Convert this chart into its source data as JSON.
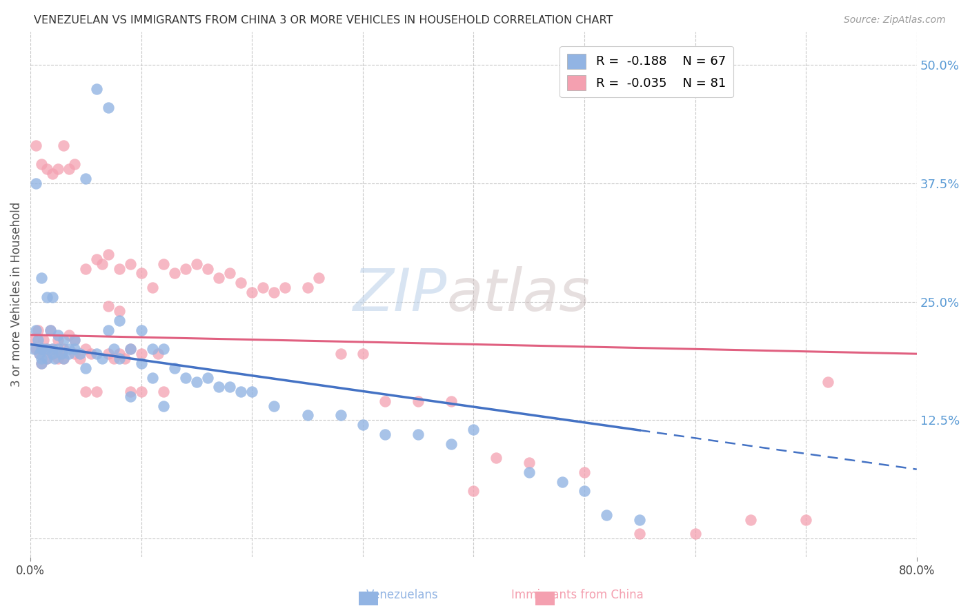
{
  "title": "VENEZUELAN VS IMMIGRANTS FROM CHINA 3 OR MORE VEHICLES IN HOUSEHOLD CORRELATION CHART",
  "source": "Source: ZipAtlas.com",
  "ylabel": "3 or more Vehicles in Household",
  "xlim": [
    0.0,
    0.8
  ],
  "ylim": [
    -0.02,
    0.535
  ],
  "yticks_right": [
    0.0,
    0.125,
    0.25,
    0.375,
    0.5
  ],
  "ytick_right_labels": [
    "",
    "12.5%",
    "25.0%",
    "37.5%",
    "50.0%"
  ],
  "legend_r1": "R =  -0.188",
  "legend_n1": "N = 67",
  "legend_r2": "R =  -0.035",
  "legend_n2": "N = 81",
  "blue_color": "#92B4E3",
  "pink_color": "#F4A0B0",
  "blue_line_color": "#4472C4",
  "pink_line_color": "#E06080",
  "watermark_zip": "ZIP",
  "watermark_atlas": "atlas",
  "background_color": "#ffffff",
  "grid_color": "#c8c8c8",
  "right_axis_color": "#5B9BD5",
  "blue_line_intercept": 0.205,
  "blue_line_slope": -0.165,
  "pink_line_intercept": 0.215,
  "pink_line_slope": -0.025,
  "venezuelans_x": [
    0.003,
    0.005,
    0.007,
    0.008,
    0.01,
    0.01,
    0.01,
    0.012,
    0.015,
    0.015,
    0.018,
    0.02,
    0.02,
    0.022,
    0.025,
    0.025,
    0.028,
    0.03,
    0.03,
    0.035,
    0.035,
    0.04,
    0.04,
    0.045,
    0.05,
    0.05,
    0.06,
    0.06,
    0.065,
    0.07,
    0.07,
    0.075,
    0.08,
    0.08,
    0.09,
    0.09,
    0.1,
    0.1,
    0.11,
    0.11,
    0.12,
    0.12,
    0.13,
    0.14,
    0.15,
    0.16,
    0.17,
    0.18,
    0.19,
    0.2,
    0.22,
    0.25,
    0.28,
    0.3,
    0.32,
    0.35,
    0.38,
    0.4,
    0.45,
    0.48,
    0.5,
    0.52,
    0.55,
    0.005,
    0.01,
    0.015,
    0.02
  ],
  "venezuelans_y": [
    0.2,
    0.22,
    0.21,
    0.195,
    0.2,
    0.185,
    0.19,
    0.2,
    0.2,
    0.19,
    0.22,
    0.2,
    0.195,
    0.19,
    0.2,
    0.215,
    0.195,
    0.21,
    0.19,
    0.2,
    0.195,
    0.21,
    0.2,
    0.195,
    0.38,
    0.18,
    0.475,
    0.195,
    0.19,
    0.455,
    0.22,
    0.2,
    0.23,
    0.19,
    0.2,
    0.15,
    0.22,
    0.185,
    0.2,
    0.17,
    0.2,
    0.14,
    0.18,
    0.17,
    0.165,
    0.17,
    0.16,
    0.16,
    0.155,
    0.155,
    0.14,
    0.13,
    0.13,
    0.12,
    0.11,
    0.11,
    0.1,
    0.115,
    0.07,
    0.06,
    0.05,
    0.025,
    0.02,
    0.375,
    0.275,
    0.255,
    0.255
  ],
  "china_x": [
    0.003,
    0.005,
    0.007,
    0.008,
    0.01,
    0.01,
    0.012,
    0.015,
    0.015,
    0.018,
    0.02,
    0.02,
    0.025,
    0.025,
    0.028,
    0.03,
    0.03,
    0.035,
    0.04,
    0.04,
    0.045,
    0.05,
    0.05,
    0.055,
    0.06,
    0.065,
    0.07,
    0.07,
    0.075,
    0.08,
    0.08,
    0.085,
    0.09,
    0.09,
    0.1,
    0.1,
    0.11,
    0.115,
    0.12,
    0.13,
    0.14,
    0.15,
    0.16,
    0.17,
    0.18,
    0.19,
    0.2,
    0.21,
    0.22,
    0.23,
    0.25,
    0.26,
    0.28,
    0.3,
    0.32,
    0.35,
    0.38,
    0.4,
    0.42,
    0.45,
    0.5,
    0.55,
    0.6,
    0.65,
    0.7,
    0.72,
    0.005,
    0.01,
    0.015,
    0.02,
    0.025,
    0.03,
    0.035,
    0.04,
    0.05,
    0.06,
    0.07,
    0.08,
    0.09,
    0.1,
    0.12
  ],
  "china_y": [
    0.21,
    0.2,
    0.22,
    0.195,
    0.2,
    0.185,
    0.21,
    0.2,
    0.19,
    0.22,
    0.2,
    0.195,
    0.21,
    0.19,
    0.195,
    0.2,
    0.19,
    0.215,
    0.21,
    0.195,
    0.19,
    0.2,
    0.285,
    0.195,
    0.295,
    0.29,
    0.3,
    0.195,
    0.19,
    0.285,
    0.195,
    0.19,
    0.29,
    0.2,
    0.28,
    0.195,
    0.265,
    0.195,
    0.29,
    0.28,
    0.285,
    0.29,
    0.285,
    0.275,
    0.28,
    0.27,
    0.26,
    0.265,
    0.26,
    0.265,
    0.265,
    0.275,
    0.195,
    0.195,
    0.145,
    0.145,
    0.145,
    0.05,
    0.085,
    0.08,
    0.07,
    0.005,
    0.005,
    0.02,
    0.02,
    0.165,
    0.415,
    0.395,
    0.39,
    0.385,
    0.39,
    0.415,
    0.39,
    0.395,
    0.155,
    0.155,
    0.245,
    0.24,
    0.155,
    0.155,
    0.155
  ]
}
